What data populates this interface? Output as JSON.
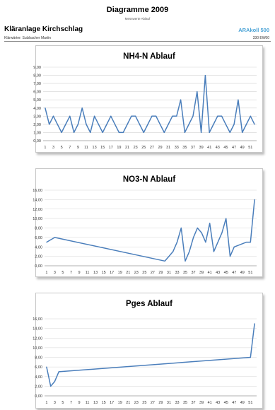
{
  "header": {
    "title": "Diagramme 2009",
    "subtitle": "Messwerte Ablauf",
    "plant": "Kläranlage Kirchschlag",
    "brand": "ARAkoll 500",
    "operator": "Klärwärter: Sulzbacher Martin",
    "capacity": "330 EW60"
  },
  "colors": {
    "series": "#4a7ebb"
  },
  "chart_data": [
    {
      "type": "line",
      "title": "NH4-N Ablauf",
      "x": [
        1,
        2,
        3,
        4,
        5,
        6,
        7,
        8,
        9,
        10,
        11,
        12,
        13,
        14,
        15,
        16,
        17,
        18,
        19,
        20,
        21,
        22,
        23,
        24,
        25,
        26,
        27,
        28,
        29,
        30,
        31,
        32,
        33,
        34,
        35,
        36,
        37,
        38,
        39,
        40,
        41,
        42,
        43,
        44,
        45,
        46,
        47,
        48,
        49,
        50,
        51,
        52
      ],
      "xticks": [
        "1",
        "3",
        "5",
        "7",
        "9",
        "11",
        "13",
        "15",
        "17",
        "19",
        "21",
        "23",
        "25",
        "27",
        "29",
        "31",
        "33",
        "35",
        "37",
        "39",
        "41",
        "43",
        "45",
        "47",
        "49",
        "51"
      ],
      "ylim": [
        0,
        9
      ],
      "yticks": [
        "0,00",
        "1,00",
        "2,00",
        "3,00",
        "4,00",
        "5,00",
        "6,00",
        "7,00",
        "8,00",
        "9,00"
      ],
      "series": [
        {
          "values": [
            4,
            2,
            3,
            2,
            1,
            2,
            3,
            1,
            2,
            4,
            2,
            1,
            3,
            2,
            1,
            2,
            3,
            2,
            1,
            1,
            2,
            3,
            3,
            2,
            1,
            2,
            3,
            3,
            2,
            1,
            2,
            3,
            3,
            5,
            1,
            2,
            3,
            6,
            1,
            8,
            1,
            2,
            3,
            3,
            2,
            1,
            2,
            5,
            1,
            2,
            3,
            2
          ]
        }
      ],
      "grid": true,
      "legend": "none"
    },
    {
      "type": "line",
      "title": "NO3-N Ablauf",
      "x": [
        1,
        3,
        30,
        31,
        32,
        33,
        34,
        35,
        36,
        37,
        38,
        39,
        40,
        41,
        42,
        43,
        44,
        45,
        46,
        47,
        50,
        51,
        52
      ],
      "xticks": [
        "1",
        "3",
        "5",
        "7",
        "9",
        "11",
        "13",
        "15",
        "17",
        "19",
        "21",
        "23",
        "25",
        "27",
        "29",
        "31",
        "33",
        "35",
        "37",
        "39",
        "41",
        "43",
        "45",
        "47",
        "49",
        "51"
      ],
      "ylim": [
        0,
        16
      ],
      "yticks": [
        "0,00",
        "2,00",
        "4,00",
        "6,00",
        "8,00",
        "10,00",
        "12,00",
        "14,00",
        "16,00"
      ],
      "series": [
        {
          "values": [
            5,
            6,
            1,
            2,
            3,
            5,
            8,
            1,
            3,
            6,
            8,
            7,
            5,
            9,
            3,
            5,
            7,
            10,
            2,
            4,
            5,
            5,
            14
          ]
        }
      ],
      "grid": true,
      "legend": "none"
    },
    {
      "type": "line",
      "title": "Pges Ablauf",
      "x": [
        1,
        2,
        3,
        4,
        51,
        52
      ],
      "xticks": [
        "1",
        "3",
        "5",
        "7",
        "9",
        "11",
        "13",
        "15",
        "17",
        "19",
        "21",
        "23",
        "25",
        "27",
        "29",
        "31",
        "33",
        "35",
        "37",
        "39",
        "41",
        "43",
        "45",
        "47",
        "49",
        "51"
      ],
      "ylim": [
        0,
        16
      ],
      "yticks": [
        "0,00",
        "2,00",
        "4,00",
        "6,00",
        "8,00",
        "10,00",
        "12,00",
        "14,00",
        "16,00"
      ],
      "series": [
        {
          "values": [
            6,
            2,
            3,
            5,
            8,
            15
          ]
        }
      ],
      "grid": true,
      "legend": "none"
    }
  ]
}
